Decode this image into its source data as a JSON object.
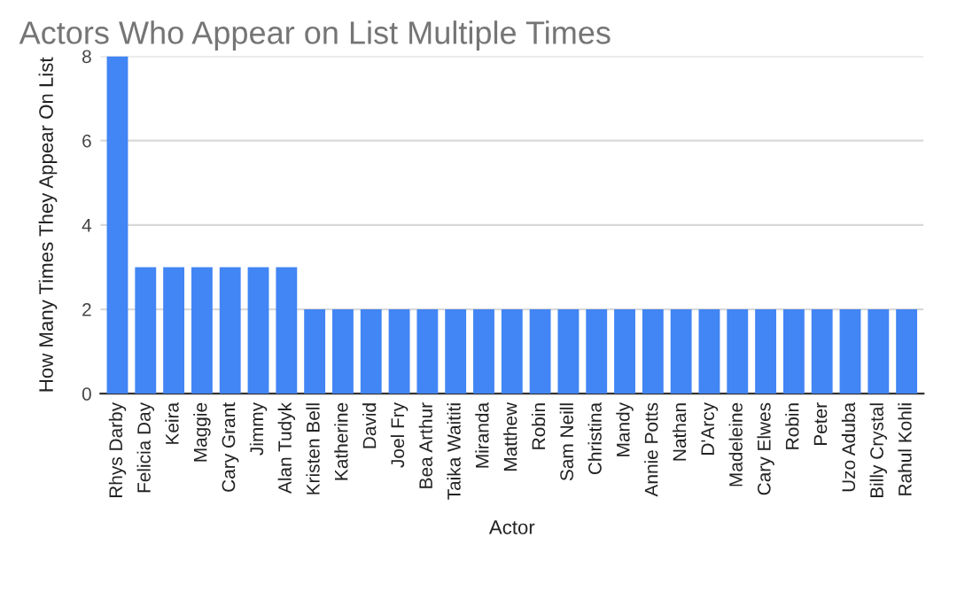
{
  "chart_data": {
    "type": "bar",
    "title": "Actors Who Appear on List Multiple Times",
    "xlabel": "Actor",
    "ylabel": "How Many Times They Appear On List",
    "categories": [
      "Rhys Darby",
      "Felicia Day",
      "Keira",
      "Maggie",
      "Cary Grant",
      "Jimmy",
      "Alan Tudyk",
      "Kristen Bell",
      "Katherine",
      "David",
      "Joel Fry",
      "Bea Arthur",
      "Taika Waititi",
      "Miranda",
      "Matthew",
      "Robin",
      "Sam Neill",
      "Christina",
      "Mandy",
      "Annie Potts",
      "Nathan",
      "D'Arcy",
      "Madeleine",
      "Cary Elwes",
      "Robin",
      "Peter",
      "Uzo Aduba",
      "Billy Crystal",
      "Rahul Kohli"
    ],
    "values": [
      8,
      3,
      3,
      3,
      3,
      3,
      3,
      2,
      2,
      2,
      2,
      2,
      2,
      2,
      2,
      2,
      2,
      2,
      2,
      2,
      2,
      2,
      2,
      2,
      2,
      2,
      2,
      2,
      2
    ],
    "color": "#4285f4",
    "ylim": [
      0,
      8
    ],
    "yticks": [
      0,
      2,
      4,
      6,
      8
    ],
    "grid": "y"
  }
}
